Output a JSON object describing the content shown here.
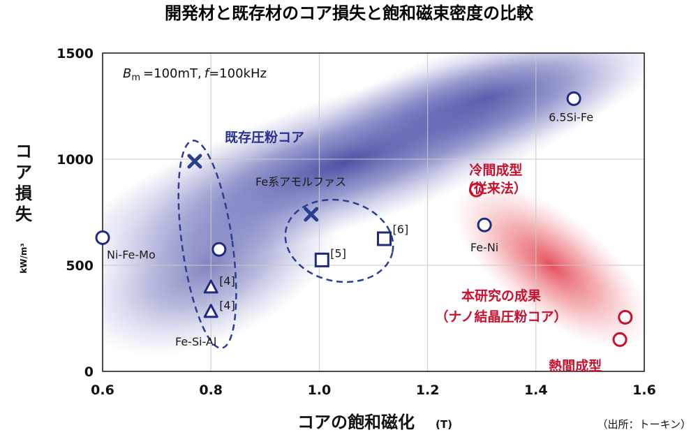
{
  "chart_data": {
    "type": "scatter",
    "title": "開発材と既存材のコア損失と飽和磁束密度の比較",
    "xlabel": "コアの飽和磁化",
    "xunit": "(T)",
    "ylabel": "コア損失",
    "yunit": "kW/m³",
    "xlim": [
      0.6,
      1.6
    ],
    "ylim": [
      0,
      1500
    ],
    "xticks": [
      "0.6",
      "0.8",
      "1.0",
      "1.2",
      "1.4",
      "1.6"
    ],
    "yticks": [
      "0",
      "500",
      "1000",
      "1500"
    ],
    "grid": true,
    "condition": {
      "b": "B",
      "b_sub": "m",
      "b_val": "=100mT,",
      "f": "f",
      "f_val": "=100kHz"
    },
    "source": "（出所：トーキン）",
    "regions": [
      {
        "label": "既存圧粉コア",
        "color": "#2b2f8f"
      },
      {
        "label": "本研究の成果",
        "label2": "（ナノ結晶圧粉コア）",
        "color": "#c8102e"
      }
    ],
    "groups": {
      "amorphous": "Fe系アモルファス",
      "fesial": "Fe-Si-Al"
    },
    "points": [
      {
        "name": "Ni-Fe-Mo",
        "x": 0.6,
        "y": 630,
        "marker": "circle",
        "color": "#1f2a80"
      },
      {
        "name": "",
        "x": 0.77,
        "y": 990,
        "marker": "cross",
        "color": "#2b3d8f"
      },
      {
        "name": "",
        "x": 0.815,
        "y": 575,
        "marker": "circle",
        "color": "#1f2a80"
      },
      {
        "name": "[4]",
        "x": 0.8,
        "y": 395,
        "marker": "triangle",
        "color": "#1f2a80"
      },
      {
        "name": "[4]",
        "x": 0.8,
        "y": 280,
        "marker": "triangle",
        "color": "#1f2a80"
      },
      {
        "name": "",
        "x": 0.985,
        "y": 740,
        "marker": "cross",
        "color": "#2b3d8f"
      },
      {
        "name": "[5]",
        "x": 1.005,
        "y": 525,
        "marker": "square",
        "color": "#1f2a80"
      },
      {
        "name": "[6]",
        "x": 1.12,
        "y": 625,
        "marker": "square",
        "color": "#1f2a80"
      },
      {
        "name": "6.5Si-Fe",
        "x": 1.47,
        "y": 1285,
        "marker": "circle",
        "color": "#1f2a80"
      },
      {
        "name": "Fe-Ni",
        "x": 1.305,
        "y": 690,
        "marker": "circle",
        "color": "#1f2a80"
      },
      {
        "name": "冷間成型",
        "name2": "（従来法）",
        "x": 1.29,
        "y": 855,
        "marker": "circle",
        "color": "#c8102e"
      },
      {
        "name": "",
        "x": 1.565,
        "y": 255,
        "marker": "circle",
        "color": "#c8102e"
      },
      {
        "name": "熱間成型",
        "x": 1.555,
        "y": 150,
        "marker": "circle",
        "color": "#c8102e"
      }
    ]
  }
}
